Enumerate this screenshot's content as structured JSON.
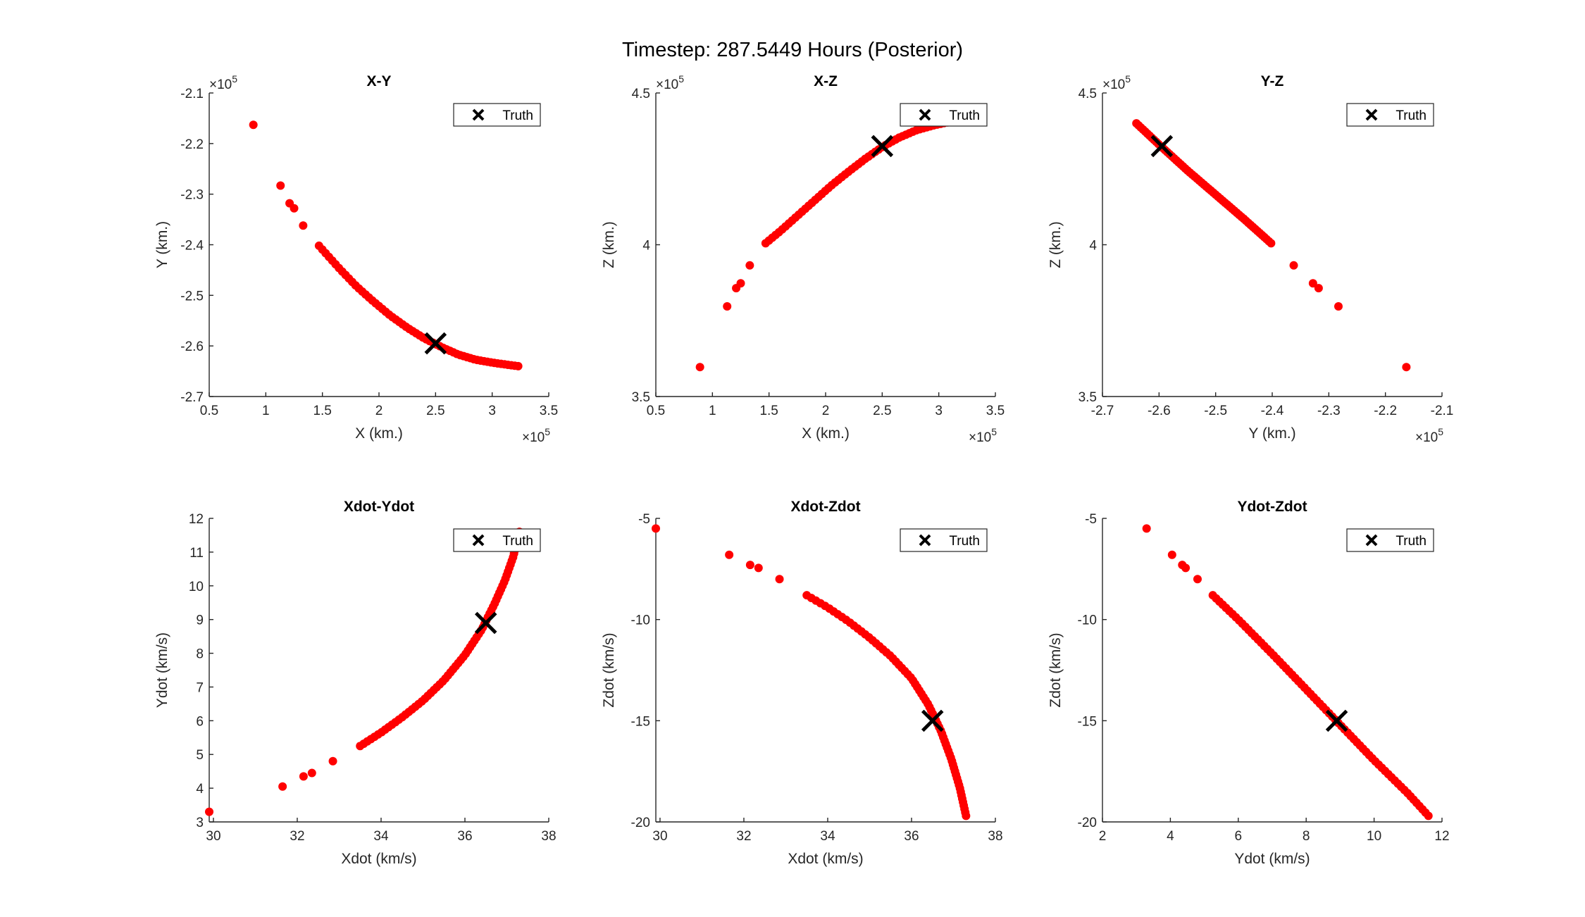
{
  "figure": {
    "title": "Timestep: 287.5449 Hours (Posterior)",
    "marker_color": "#ff0000",
    "truth_color": "#000000"
  },
  "chart_data": [
    {
      "type": "scatter",
      "title": "X-Y",
      "xlabel": "X (km.)",
      "ylabel": "Y (km.)",
      "xlim": [
        0.5,
        3.5
      ],
      "ylim": [
        -2.7,
        -2.1
      ],
      "xticks": [
        0.5,
        1,
        1.5,
        2,
        2.5,
        3,
        3.5
      ],
      "yticks": [
        -2.7,
        -2.6,
        -2.5,
        -2.4,
        -2.3,
        -2.2,
        -2.1
      ],
      "xtick_labels": [
        "0.5",
        "1",
        "1.5",
        "2",
        "2.5",
        "3",
        "3.5"
      ],
      "ytick_labels": [
        "-2.7",
        "-2.6",
        "-2.5",
        "-2.4",
        "-2.3",
        "-2.2",
        "-2.1"
      ],
      "x_exponent": "5",
      "y_exponent": "5",
      "legend": {
        "label": "Truth",
        "placement": "top-right"
      },
      "truth": [
        2.5,
        -2.595
      ],
      "points": [
        [
          0.89,
          -2.163
        ],
        [
          1.13,
          -2.283
        ],
        [
          1.21,
          -2.318
        ],
        [
          1.25,
          -2.328
        ],
        [
          1.33,
          -2.362
        ]
      ],
      "arc": [
        [
          1.47,
          -2.402
        ],
        [
          1.55,
          -2.422
        ],
        [
          1.65,
          -2.447
        ],
        [
          1.8,
          -2.482
        ],
        [
          1.95,
          -2.512
        ],
        [
          2.1,
          -2.54
        ],
        [
          2.25,
          -2.564
        ],
        [
          2.4,
          -2.585
        ],
        [
          2.55,
          -2.602
        ],
        [
          2.7,
          -2.617
        ],
        [
          2.85,
          -2.627
        ],
        [
          3.0,
          -2.633
        ],
        [
          3.13,
          -2.637
        ],
        [
          3.23,
          -2.64
        ]
      ],
      "arc_count": 60
    },
    {
      "type": "scatter",
      "title": "X-Z",
      "xlabel": "X (km.)",
      "ylabel": "Z (km.)",
      "xlim": [
        0.5,
        3.5
      ],
      "ylim": [
        3.5,
        4.5
      ],
      "xticks": [
        0.5,
        1,
        1.5,
        2,
        2.5,
        3,
        3.5
      ],
      "yticks": [
        3.5,
        4,
        4.5
      ],
      "xtick_labels": [
        "0.5",
        "1",
        "1.5",
        "2",
        "2.5",
        "3",
        "3.5"
      ],
      "ytick_labels": [
        "3.5",
        "4",
        "4.5"
      ],
      "x_exponent": "5",
      "y_exponent": "5",
      "legend": {
        "label": "Truth",
        "placement": "top-right"
      },
      "truth": [
        2.5,
        4.325
      ],
      "points": [
        [
          0.89,
          3.597
        ],
        [
          1.13,
          3.797
        ],
        [
          1.21,
          3.857
        ],
        [
          1.25,
          3.873
        ],
        [
          1.33,
          3.932
        ]
      ],
      "arc": [
        [
          1.47,
          4.005
        ],
        [
          1.6,
          4.045
        ],
        [
          1.75,
          4.095
        ],
        [
          1.9,
          4.145
        ],
        [
          2.05,
          4.195
        ],
        [
          2.2,
          4.24
        ],
        [
          2.35,
          4.283
        ],
        [
          2.5,
          4.322
        ],
        [
          2.65,
          4.353
        ],
        [
          2.8,
          4.377
        ],
        [
          2.95,
          4.393
        ],
        [
          3.1,
          4.405
        ],
        [
          3.23,
          4.415
        ]
      ],
      "arc_count": 60
    },
    {
      "type": "scatter",
      "title": "Y-Z",
      "xlabel": "Y (km.)",
      "ylabel": "Z (km.)",
      "xlim": [
        -2.7,
        -2.1
      ],
      "ylim": [
        3.5,
        4.5
      ],
      "xticks": [
        -2.7,
        -2.6,
        -2.5,
        -2.4,
        -2.3,
        -2.2,
        -2.1
      ],
      "yticks": [
        3.5,
        4,
        4.5
      ],
      "xtick_labels": [
        "-2.7",
        "-2.6",
        "-2.5",
        "-2.4",
        "-2.3",
        "-2.2",
        "-2.1"
      ],
      "ytick_labels": [
        "3.5",
        "4",
        "4.5"
      ],
      "x_exponent": "5",
      "y_exponent": "5",
      "legend": {
        "label": "Truth",
        "placement": "top-right"
      },
      "truth": [
        -2.595,
        4.325
      ],
      "points": [
        [
          -2.163,
          3.597
        ],
        [
          -2.283,
          3.797
        ],
        [
          -2.318,
          3.857
        ],
        [
          -2.328,
          3.873
        ],
        [
          -2.362,
          3.932
        ]
      ],
      "arc": [
        [
          -2.402,
          4.005
        ],
        [
          -2.45,
          4.085
        ],
        [
          -2.5,
          4.165
        ],
        [
          -2.55,
          4.245
        ],
        [
          -2.6,
          4.33
        ],
        [
          -2.64,
          4.4
        ]
      ],
      "arc_count": 60
    },
    {
      "type": "scatter",
      "title": "Xdot-Ydot",
      "xlabel": "Xdot (km/s)",
      "ylabel": "Ydot (km/s)",
      "xlim": [
        29.9,
        38
      ],
      "ylim": [
        3,
        12
      ],
      "xticks": [
        30,
        32,
        34,
        36,
        38
      ],
      "yticks": [
        3,
        4,
        5,
        6,
        7,
        8,
        9,
        10,
        11,
        12
      ],
      "xtick_labels": [
        "30",
        "32",
        "34",
        "36",
        "38"
      ],
      "ytick_labels": [
        "3",
        "4",
        "5",
        "6",
        "7",
        "8",
        "9",
        "10",
        "11",
        "12"
      ],
      "legend": {
        "label": "Truth",
        "placement": "top-right"
      },
      "truth": [
        36.5,
        8.9
      ],
      "points": [
        [
          29.9,
          3.3
        ],
        [
          31.65,
          4.05
        ],
        [
          32.15,
          4.35
        ],
        [
          32.35,
          4.45
        ],
        [
          32.85,
          4.8
        ]
      ],
      "arc": [
        [
          33.5,
          5.25
        ],
        [
          34.0,
          5.65
        ],
        [
          34.5,
          6.1
        ],
        [
          35.0,
          6.6
        ],
        [
          35.5,
          7.2
        ],
        [
          36.0,
          7.95
        ],
        [
          36.4,
          8.7
        ],
        [
          36.7,
          9.45
        ],
        [
          36.95,
          10.15
        ],
        [
          37.15,
          10.85
        ],
        [
          37.3,
          11.6
        ]
      ],
      "arc_count": 70
    },
    {
      "type": "scatter",
      "title": "Xdot-Zdot",
      "xlabel": "Xdot (km/s)",
      "ylabel": "Zdot (km/s)",
      "xlim": [
        29.9,
        38
      ],
      "ylim": [
        -20,
        -5
      ],
      "xticks": [
        30,
        32,
        34,
        36,
        38
      ],
      "yticks": [
        -20,
        -15,
        -10,
        -5
      ],
      "xtick_labels": [
        "30",
        "32",
        "34",
        "36",
        "38"
      ],
      "ytick_labels": [
        "-20",
        "-15",
        "-10",
        "-5"
      ],
      "legend": {
        "label": "Truth",
        "placement": "top-right"
      },
      "truth": [
        36.5,
        -15
      ],
      "points": [
        [
          29.9,
          -5.5
        ],
        [
          31.65,
          -6.8
        ],
        [
          32.15,
          -7.3
        ],
        [
          32.35,
          -7.45
        ],
        [
          32.85,
          -8.0
        ]
      ],
      "arc": [
        [
          33.5,
          -8.8
        ],
        [
          34.0,
          -9.4
        ],
        [
          34.5,
          -10.1
        ],
        [
          35.0,
          -10.9
        ],
        [
          35.5,
          -11.8
        ],
        [
          36.0,
          -12.9
        ],
        [
          36.4,
          -14.2
        ],
        [
          36.7,
          -15.5
        ],
        [
          36.95,
          -16.9
        ],
        [
          37.15,
          -18.3
        ],
        [
          37.3,
          -19.7
        ]
      ],
      "arc_count": 70
    },
    {
      "type": "scatter",
      "title": "Ydot-Zdot",
      "xlabel": "Ydot (km/s)",
      "ylabel": "Zdot (km/s)",
      "xlim": [
        2,
        12
      ],
      "ylim": [
        -20,
        -5
      ],
      "xticks": [
        2,
        4,
        6,
        8,
        10,
        12
      ],
      "yticks": [
        -20,
        -15,
        -10,
        -5
      ],
      "xtick_labels": [
        "2",
        "4",
        "6",
        "8",
        "10",
        "12"
      ],
      "ytick_labels": [
        "-20",
        "-15",
        "-10",
        "-5"
      ],
      "legend": {
        "label": "Truth",
        "placement": "top-right"
      },
      "truth": [
        8.9,
        -15
      ],
      "points": [
        [
          3.3,
          -5.5
        ],
        [
          4.05,
          -6.8
        ],
        [
          4.35,
          -7.3
        ],
        [
          4.45,
          -7.45
        ],
        [
          4.8,
          -8.0
        ]
      ],
      "arc": [
        [
          5.25,
          -8.8
        ],
        [
          6.0,
          -10.0
        ],
        [
          7.0,
          -11.7
        ],
        [
          8.0,
          -13.45
        ],
        [
          9.0,
          -15.2
        ],
        [
          10.0,
          -16.95
        ],
        [
          11.0,
          -18.6
        ],
        [
          11.6,
          -19.7
        ]
      ],
      "arc_count": 70
    }
  ]
}
